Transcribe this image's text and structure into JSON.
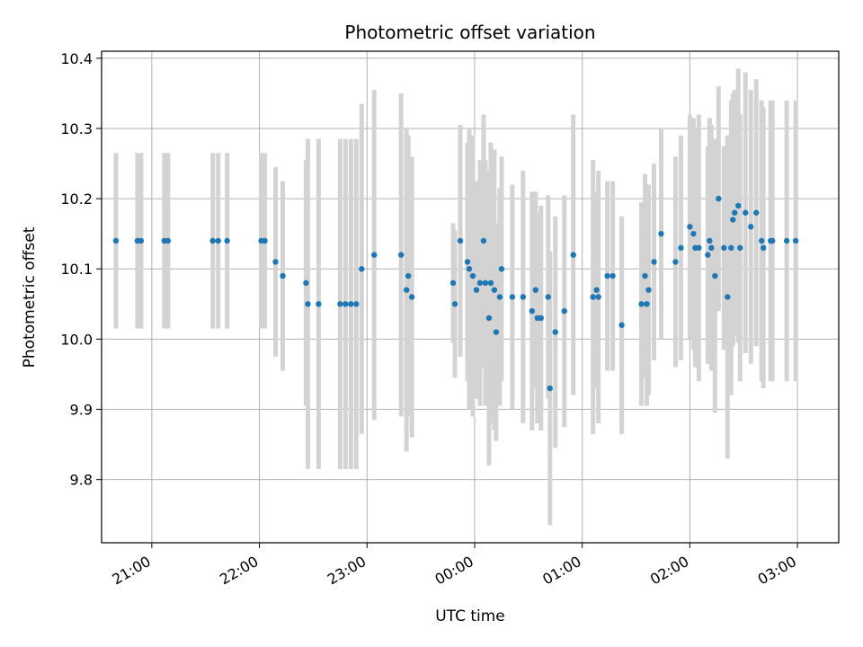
{
  "chart_data": {
    "type": "scatter",
    "title": "Photometric offset variation",
    "xlabel": "UTC time",
    "ylabel": "Photometric offset",
    "x_unit": "hours",
    "xlim": [
      "20:32",
      "03:23"
    ],
    "ylim": [
      9.71,
      10.41
    ],
    "x_ticks": [
      "21:00",
      "22:00",
      "23:00",
      "00:00",
      "01:00",
      "02:00",
      "03:00"
    ],
    "y_ticks": [
      9.8,
      9.9,
      10.0,
      10.1,
      10.2,
      10.3,
      10.4
    ],
    "y_tick_labels": [
      "9.8",
      "9.9",
      "10.0",
      "10.1",
      "10.2",
      "10.3",
      "10.4"
    ],
    "grid": true,
    "colors": {
      "points": "#1f77b4",
      "errorbars": "#d3d3d3"
    },
    "series": [
      {
        "x": [
          "20:40",
          "20:52",
          "20:54",
          "21:07",
          "21:09",
          "21:34",
          "21:37",
          "21:42",
          "22:01",
          "22:03",
          "22:09",
          "22:13",
          "22:26",
          "22:27",
          "22:33",
          "22:45",
          "22:48",
          "22:51",
          "22:54",
          "22:57",
          "23:04",
          "23:19",
          "23:22",
          "23:23",
          "23:25",
          "23:48",
          "23:49",
          "23:52",
          "23:56",
          "23:57",
          "23:59",
          "00:01",
          "00:03",
          "00:05",
          "00:06",
          "00:08",
          "00:09",
          "00:11",
          "00:12",
          "00:14",
          "00:15",
          "00:21",
          "00:27",
          "00:32",
          "00:34",
          "00:35",
          "00:37",
          "00:41",
          "00:42",
          "00:45",
          "00:50",
          "00:55",
          "01:06",
          "01:08",
          "01:09",
          "01:14",
          "01:17",
          "01:22",
          "01:33",
          "01:35",
          "01:36",
          "01:37",
          "01:40",
          "01:44",
          "01:52",
          "01:55",
          "02:00",
          "02:02",
          "02:03",
          "02:05",
          "02:10",
          "02:11",
          "02:12",
          "02:14",
          "02:16",
          "02:19",
          "02:21",
          "02:23",
          "02:24",
          "02:25",
          "02:27",
          "02:28",
          "02:31",
          "02:34",
          "02:37",
          "02:40",
          "02:41",
          "02:45",
          "02:46",
          "02:54",
          "02:59"
        ],
        "y": [
          10.14,
          10.14,
          10.14,
          10.14,
          10.14,
          10.14,
          10.14,
          10.14,
          10.14,
          10.14,
          10.11,
          10.09,
          10.08,
          10.05,
          10.05,
          10.05,
          10.05,
          10.05,
          10.05,
          10.1,
          10.12,
          10.12,
          10.07,
          10.09,
          10.06,
          10.08,
          10.05,
          10.14,
          10.11,
          10.1,
          10.09,
          10.07,
          10.08,
          10.14,
          10.08,
          10.03,
          10.08,
          10.07,
          10.01,
          10.06,
          10.1,
          10.06,
          10.06,
          10.04,
          10.07,
          10.03,
          10.03,
          10.06,
          9.93,
          10.01,
          10.04,
          10.12,
          10.06,
          10.07,
          10.06,
          10.09,
          10.09,
          10.02,
          10.05,
          10.09,
          10.05,
          10.07,
          10.11,
          10.15,
          10.11,
          10.13,
          10.16,
          10.15,
          10.13,
          10.13,
          10.12,
          10.14,
          10.13,
          10.09,
          10.2,
          10.13,
          10.06,
          10.13,
          10.17,
          10.18,
          10.19,
          10.13,
          10.18,
          10.16,
          10.18,
          10.14,
          10.13,
          10.14,
          10.14,
          10.14,
          10.14
        ],
        "y_error": [
          0.125,
          0.125,
          0.125,
          0.125,
          0.125,
          0.125,
          0.125,
          0.125,
          0.125,
          0.125,
          0.135,
          0.135,
          0.175,
          0.235,
          0.235,
          0.235,
          0.235,
          0.235,
          0.235,
          0.235,
          0.235,
          0.23,
          0.23,
          0.2,
          0.2,
          0.085,
          0.105,
          0.165,
          0.17,
          0.2,
          0.2,
          0.155,
          0.175,
          0.18,
          0.175,
          0.21,
          0.2,
          0.2,
          0.155,
          0.155,
          0.16,
          0.16,
          0.18,
          0.17,
          0.14,
          0.15,
          0.16,
          0.145,
          0.195,
          0.165,
          0.165,
          0.2,
          0.195,
          0.14,
          0.18,
          0.135,
          0.135,
          0.155,
          0.145,
          0.145,
          0.145,
          0.15,
          0.14,
          0.15,
          0.15,
          0.16,
          0.16,
          0.165,
          0.17,
          0.19,
          0.155,
          0.175,
          0.175,
          0.195,
          0.16,
          0.145,
          0.23,
          0.21,
          0.18,
          0.175,
          0.195,
          0.19,
          0.2,
          0.195,
          0.19,
          0.2,
          0.2,
          0.2,
          0.2,
          0.2,
          0.2
        ]
      }
    ]
  }
}
